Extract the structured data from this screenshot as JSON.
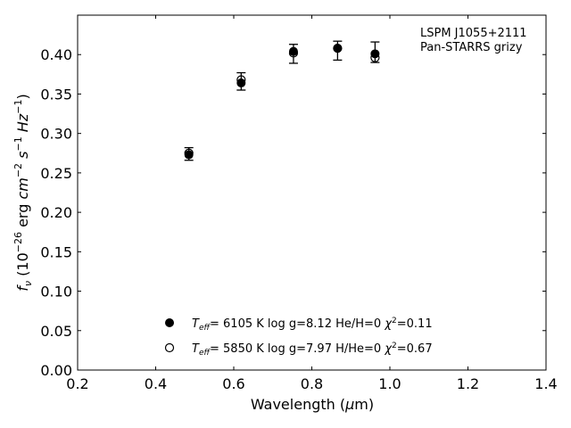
{
  "chart_data": {
    "type": "scatter",
    "title": "",
    "xlabel": "Wavelength (μm)",
    "ylabel": "fν (10⁻²⁶ erg cm⁻² s⁻¹ Hz⁻¹)",
    "xlim": [
      0.2,
      1.4
    ],
    "ylim": [
      0.0,
      0.45
    ],
    "x_ticks": [
      "0.2",
      "0.4",
      "0.6",
      "0.8",
      "1.0",
      "1.2",
      "1.4"
    ],
    "y_ticks": [
      "0.00",
      "0.05",
      "0.10",
      "0.15",
      "0.20",
      "0.25",
      "0.30",
      "0.35",
      "0.40"
    ],
    "grid": false,
    "annotation": {
      "lines": [
        "LSPM J1055+2111",
        "Pan-STARRS grizy"
      ],
      "position": "top-right"
    },
    "legend": {
      "position": "lower-center",
      "entries": [
        {
          "marker": "filled-circle",
          "teff": "6105 K",
          "rest": "log g=8.12  He/H=0",
          "chi2": "=0.11"
        },
        {
          "marker": "open-circle",
          "teff": "5850 K",
          "rest": "log g=7.97  H/He=0",
          "chi2": "=0.67"
        }
      ]
    },
    "series": [
      {
        "marker": "errorbar-cap",
        "color": "#000000",
        "points": [
          {
            "x": 0.485,
            "y": 0.274,
            "err": 0.008
          },
          {
            "x": 0.619,
            "y": 0.366,
            "err": 0.011
          },
          {
            "x": 0.753,
            "y": 0.401,
            "err": 0.012
          },
          {
            "x": 0.866,
            "y": 0.405,
            "err": 0.012
          },
          {
            "x": 0.962,
            "y": 0.403,
            "err": 0.013
          }
        ]
      },
      {
        "marker": "filled-circle",
        "color": "#000000",
        "points": [
          {
            "x": 0.485,
            "y": 0.273
          },
          {
            "x": 0.619,
            "y": 0.364
          },
          {
            "x": 0.753,
            "y": 0.404
          },
          {
            "x": 0.866,
            "y": 0.408
          },
          {
            "x": 0.962,
            "y": 0.401
          }
        ]
      },
      {
        "marker": "open-circle",
        "color": "#000000",
        "points": [
          {
            "x": 0.485,
            "y": 0.275
          },
          {
            "x": 0.619,
            "y": 0.368
          },
          {
            "x": 0.753,
            "y": 0.402
          },
          {
            "x": 0.866,
            "y": 0.408
          },
          {
            "x": 0.962,
            "y": 0.396
          }
        ]
      }
    ]
  }
}
